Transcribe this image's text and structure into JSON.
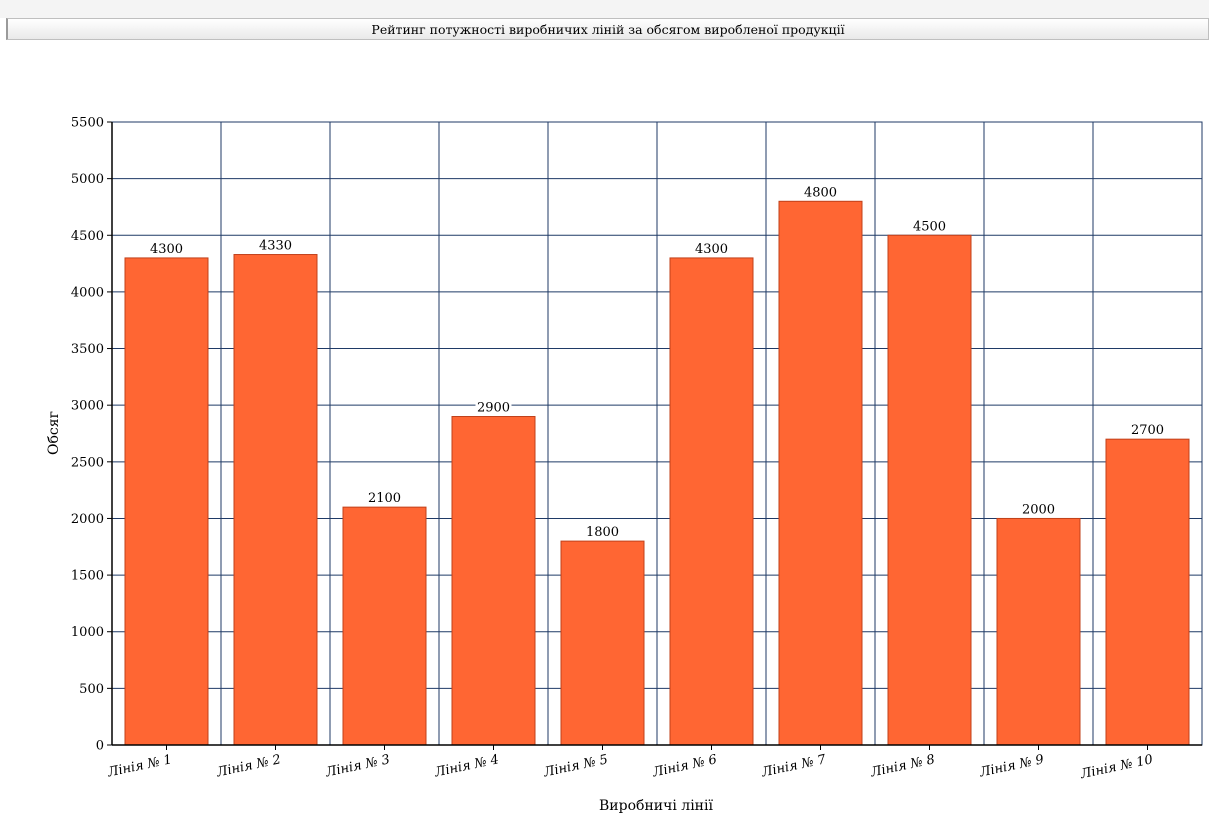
{
  "window": {
    "title": "Рейтинг потужності виробничих ліній за обсягом виробленої продукції"
  },
  "chart_data": {
    "type": "bar",
    "title": "Рейтинг потужності виробничих ліній за обсягом виробленої продукції",
    "xlabel": "Виробничі лінії",
    "ylabel": "Обсяг",
    "categories": [
      "Лінія № 1",
      "Лінія № 2",
      "Лінія № 3",
      "Лінія № 4",
      "Лінія № 5",
      "Лінія № 6",
      "Лінія № 7",
      "Лінія № 8",
      "Лінія № 9",
      "Лінія № 10"
    ],
    "values": [
      4300,
      4330,
      2100,
      2900,
      1800,
      4300,
      4800,
      4500,
      2000,
      2700
    ],
    "ylim": [
      0,
      5500
    ],
    "yticks": [
      0,
      500,
      1000,
      1500,
      2000,
      2500,
      3000,
      3500,
      4000,
      4500,
      5000,
      5500
    ],
    "grid": true,
    "colors": {
      "bar": "#ff6633",
      "bar_edge": "#c0401a",
      "grid": "#1f3a66"
    }
  }
}
